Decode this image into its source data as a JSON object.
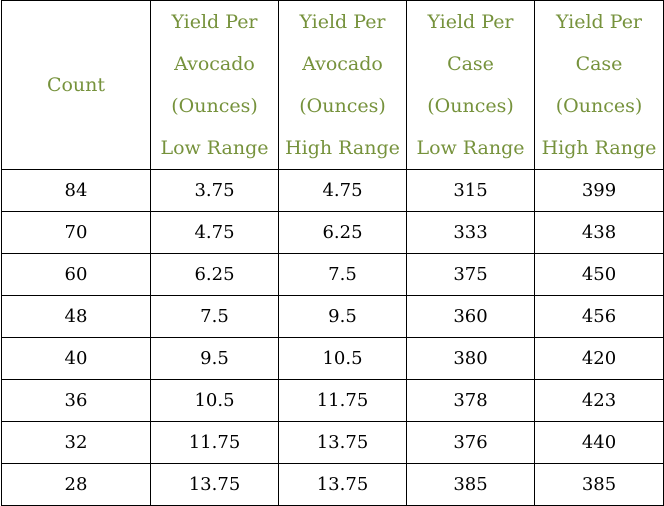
{
  "table": {
    "header_color": "#76923c",
    "headers": [
      {
        "lines": [
          "Count"
        ]
      },
      {
        "lines": [
          "Yield Per",
          "Avocado",
          "(Ounces)",
          "Low Range"
        ]
      },
      {
        "lines": [
          "Yield Per",
          "Avocado",
          "(Ounces)",
          "High Range"
        ]
      },
      {
        "lines": [
          "Yield Per",
          "Case",
          "(Ounces)",
          "Low Range"
        ]
      },
      {
        "lines": [
          "Yield Per",
          "Case",
          "(Ounces)",
          "High Range"
        ]
      }
    ],
    "rows": [
      [
        "84",
        "3.75",
        "4.75",
        "315",
        "399"
      ],
      [
        "70",
        "4.75",
        "6.25",
        "333",
        "438"
      ],
      [
        "60",
        "6.25",
        "7.5",
        "375",
        "450"
      ],
      [
        "48",
        "7.5",
        "9.5",
        "360",
        "456"
      ],
      [
        "40",
        "9.5",
        "10.5",
        "380",
        "420"
      ],
      [
        "36",
        "10.5",
        "11.75",
        "378",
        "423"
      ],
      [
        "32",
        "11.75",
        "13.75",
        "376",
        "440"
      ],
      [
        "28",
        "13.75",
        "13.75",
        "385",
        "385"
      ]
    ]
  }
}
